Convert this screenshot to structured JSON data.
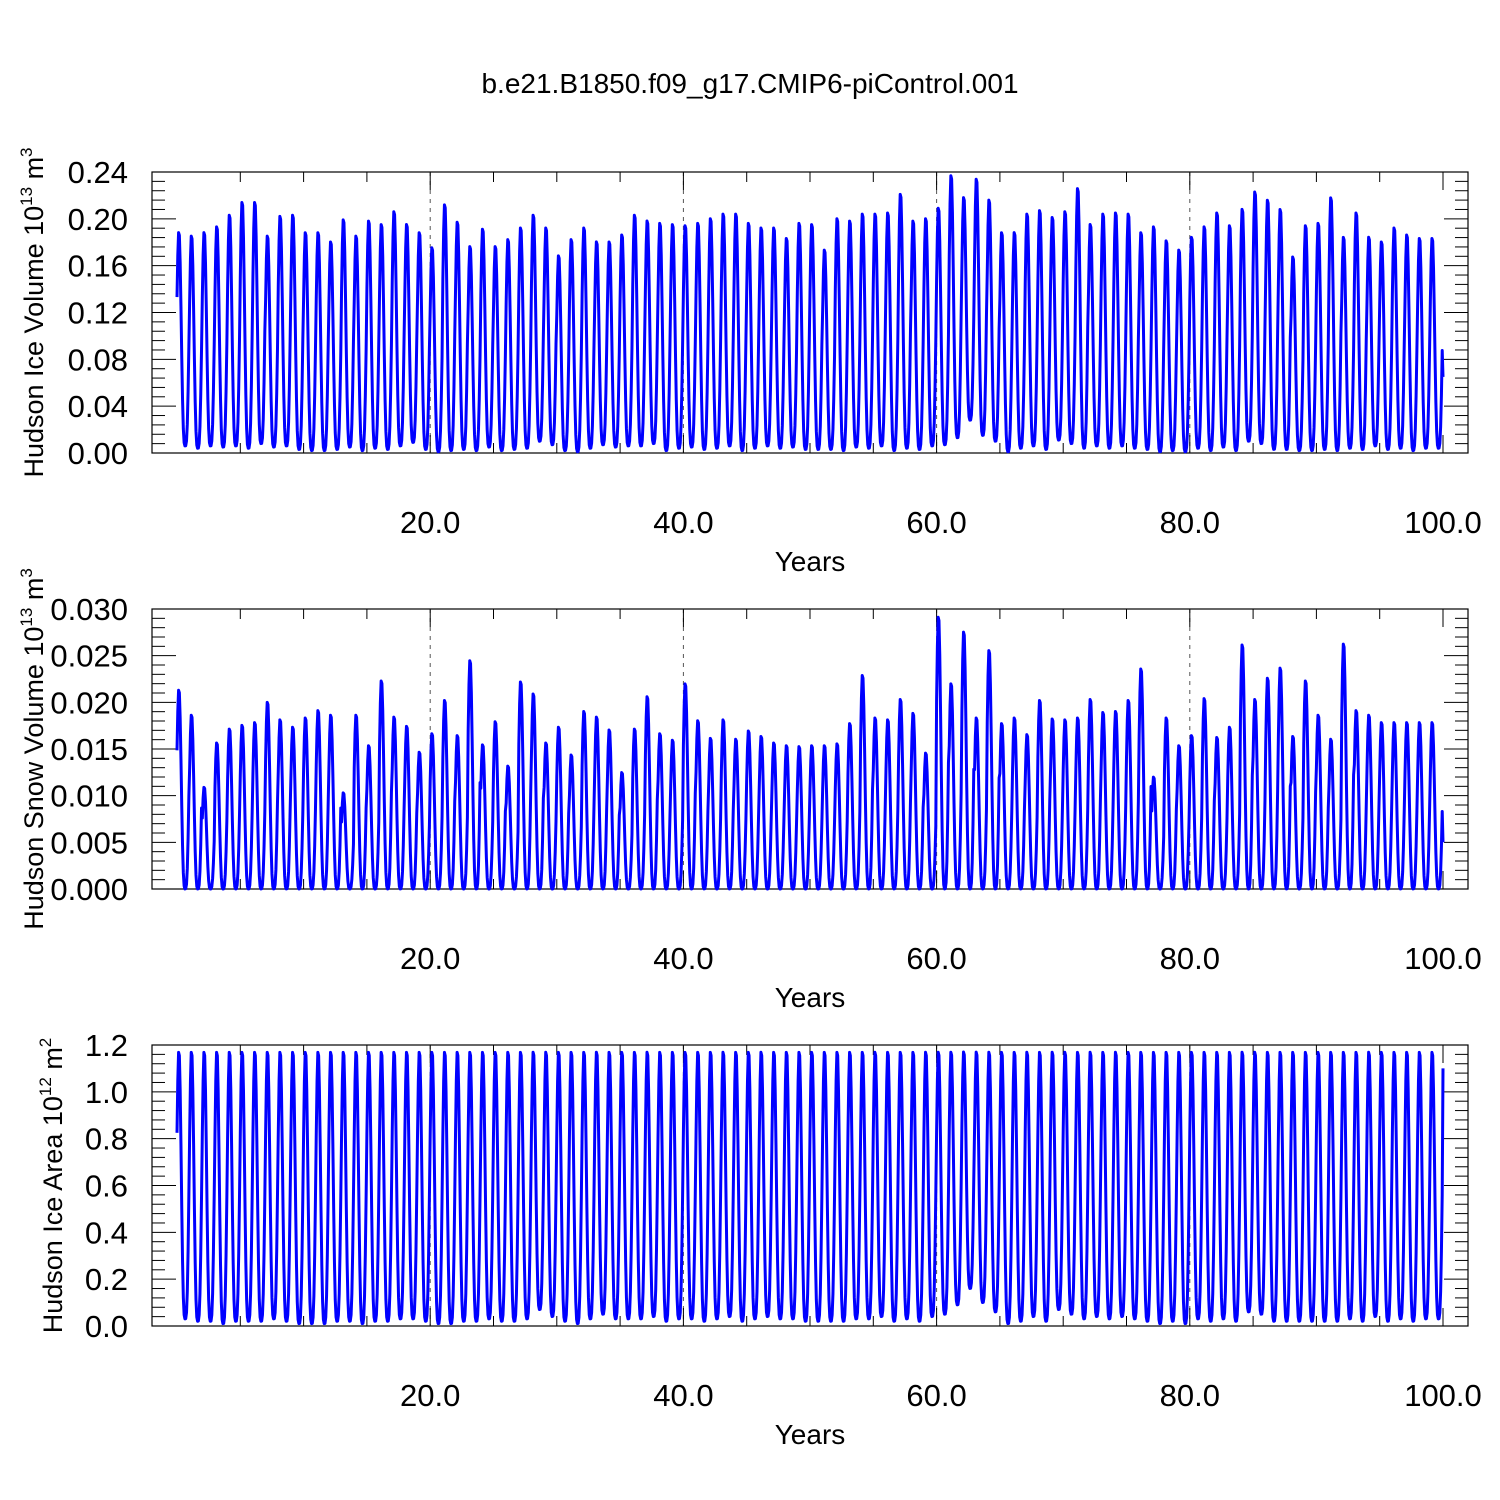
{
  "title": "b.e21.B1850.f09_g17.CMIP6-piControl.001",
  "colors": {
    "series": "#0000ff",
    "axis": "#000000",
    "grid": "#555555"
  },
  "chart_data": [
    {
      "type": "line",
      "ylabel": {
        "pre": "Hudson Ice Volume 10",
        "sup": "13",
        "mid": " m",
        "sup2": "3"
      },
      "xlabel": "Years",
      "xlim": [
        0,
        100
      ],
      "ylim": [
        0,
        0.24
      ],
      "x_ticks": [
        "20.0",
        "40.0",
        "60.0",
        "80.0",
        "100.0"
      ],
      "y_ticks": [
        "0.00",
        "0.04",
        "0.08",
        "0.12",
        "0.16",
        "0.20",
        "0.24"
      ],
      "grid": "vertical dashed at 20, 40, 60, 80",
      "series": [
        {
          "annual_maxima": [
            0.19,
            0.187,
            0.19,
            0.195,
            0.205,
            0.216,
            0.216,
            0.187,
            0.204,
            0.205,
            0.19,
            0.19,
            0.182,
            0.201,
            0.187,
            0.2,
            0.197,
            0.208,
            0.197,
            0.19,
            0.177,
            0.214,
            0.199,
            0.178,
            0.193,
            0.178,
            0.184,
            0.194,
            0.205,
            0.194,
            0.17,
            0.184,
            0.194,
            0.182,
            0.182,
            0.188,
            0.205,
            0.2,
            0.198,
            0.197,
            0.196,
            0.198,
            0.202,
            0.206,
            0.206,
            0.198,
            0.194,
            0.194,
            0.185,
            0.198,
            0.197,
            0.175,
            0.202,
            0.2,
            0.206,
            0.206,
            0.207,
            0.223,
            0.2,
            0.202,
            0.211,
            0.239,
            0.22,
            0.236,
            0.218,
            0.19,
            0.19,
            0.206,
            0.209,
            0.203,
            0.208,
            0.228,
            0.197,
            0.206,
            0.207,
            0.206,
            0.19,
            0.195,
            0.183,
            0.175,
            0.186,
            0.195,
            0.207,
            0.196,
            0.21,
            0.225,
            0.218,
            0.21,
            0.169,
            0.196,
            0.198,
            0.22,
            0.186,
            0.207,
            0.186,
            0.182,
            0.194,
            0.188,
            0.185
          ],
          "annual_minima": [
            0.006,
            0.004,
            0.006,
            0.005,
            0.006,
            0.004,
            0.008,
            0.005,
            0.006,
            0.003,
            0.002,
            0.002,
            0.003,
            0.005,
            0.002,
            0.004,
            0.003,
            0.006,
            0.009,
            0.003,
            0.001,
            0.002,
            0.003,
            0.002,
            0.005,
            0.002,
            0.003,
            0.004,
            0.01,
            0.007,
            0.002,
            0.001,
            0.004,
            0.007,
            0.005,
            0.006,
            0.006,
            0.008,
            0.002,
            0.004,
            0.005,
            0.003,
            0.004,
            0.006,
            0.002,
            0.004,
            0.006,
            0.004,
            0.005,
            0.003,
            0.003,
            0.003,
            0.002,
            0.005,
            0.004,
            0.006,
            0.002,
            0.004,
            0.003,
            0.006,
            0.007,
            0.013,
            0.028,
            0.015,
            0.01,
            0.001,
            0.004,
            0.006,
            0.003,
            0.011,
            0.008,
            0.004,
            0.006,
            0.004,
            0.006,
            0.004,
            0.003,
            0.001,
            0.002,
            0.001,
            0.004,
            0.002,
            0.005,
            0.002,
            0.01,
            0.008,
            0.003,
            0.003,
            0.002,
            0.002,
            0.003,
            0.002,
            0.004,
            0.003,
            0.006,
            0.003,
            0.004,
            0.002,
            0.004
          ],
          "end_value": 0.065
        }
      ]
    },
    {
      "type": "line",
      "ylabel": {
        "pre": "Hudson Snow Volume 10",
        "sup": "13",
        "mid": " m",
        "sup2": "3"
      },
      "xlabel": "Years",
      "xlim": [
        0,
        100
      ],
      "ylim": [
        0,
        0.03
      ],
      "x_ticks": [
        "20.0",
        "40.0",
        "60.0",
        "80.0",
        "100.0"
      ],
      "y_ticks": [
        "0.000",
        "0.005",
        "0.010",
        "0.015",
        "0.020",
        "0.025",
        "0.030"
      ],
      "grid": "vertical dashed at 20, 40, 60, 80",
      "series": [
        {
          "annual_maxima": [
            0.0215,
            0.0188,
            0.011,
            0.0158,
            0.0173,
            0.0177,
            0.018,
            0.0202,
            0.0183,
            0.0175,
            0.0185,
            0.0193,
            0.0188,
            0.0104,
            0.0188,
            0.0155,
            0.0225,
            0.0186,
            0.0176,
            0.0148,
            0.0168,
            0.0204,
            0.0166,
            0.0247,
            0.0156,
            0.0181,
            0.0133,
            0.0224,
            0.0211,
            0.0158,
            0.0175,
            0.0145,
            0.0192,
            0.0186,
            0.0172,
            0.0126,
            0.0173,
            0.0208,
            0.0168,
            0.0161,
            0.0222,
            0.0182,
            0.0163,
            0.0183,
            0.0162,
            0.0171,
            0.0165,
            0.0158,
            0.0155,
            0.0154,
            0.0155,
            0.0155,
            0.0157,
            0.0179,
            0.0231,
            0.0185,
            0.0183,
            0.0205,
            0.019,
            0.0147,
            0.0294,
            0.0222,
            0.0278,
            0.0185,
            0.0258,
            0.0179,
            0.0185,
            0.0167,
            0.0204,
            0.0184,
            0.0183,
            0.0185,
            0.0205,
            0.0191,
            0.0192,
            0.0204,
            0.0238,
            0.0121,
            0.0185,
            0.0155,
            0.0166,
            0.0206,
            0.0164,
            0.0175,
            0.0264,
            0.0205,
            0.0228,
            0.0239,
            0.0165,
            0.0225,
            0.0188,
            0.0162,
            0.0265,
            0.0193,
            0.0188,
            0.018
          ],
          "annual_minima": [
            0.0
          ],
          "end_value": 0.005
        }
      ]
    },
    {
      "type": "line",
      "ylabel": {
        "pre": "Hudson Ice Area 10",
        "sup": "12",
        "mid": " m",
        "sup2": "2"
      },
      "xlabel": "Years",
      "xlim": [
        0,
        100
      ],
      "ylim": [
        0,
        1.2
      ],
      "x_ticks": [
        "20.0",
        "40.0",
        "60.0",
        "80.0",
        "100.0"
      ],
      "y_ticks": [
        "0.0",
        "0.2",
        "0.4",
        "0.6",
        "0.8",
        "1.0",
        "1.2"
      ],
      "grid": "vertical dashed at 20, 40, 60, 80",
      "series": [
        {
          "annual_maxima": [
            1.18
          ],
          "annual_minima": [
            0.03,
            0.02,
            0.02,
            0.01,
            0.02,
            0.02,
            0.02,
            0.03,
            0.02,
            0.01,
            0.01,
            0.01,
            0.02,
            0.02,
            0.01,
            0.02,
            0.02,
            0.03,
            0.03,
            0.02,
            0.01,
            0.01,
            0.02,
            0.02,
            0.03,
            0.02,
            0.02,
            0.03,
            0.07,
            0.04,
            0.02,
            0.01,
            0.03,
            0.05,
            0.03,
            0.03,
            0.03,
            0.04,
            0.02,
            0.03,
            0.03,
            0.02,
            0.03,
            0.04,
            0.02,
            0.03,
            0.04,
            0.03,
            0.03,
            0.02,
            0.02,
            0.02,
            0.02,
            0.03,
            0.03,
            0.04,
            0.02,
            0.03,
            0.02,
            0.04,
            0.05,
            0.09,
            0.16,
            0.1,
            0.06,
            0.01,
            0.02,
            0.04,
            0.02,
            0.07,
            0.05,
            0.03,
            0.04,
            0.03,
            0.04,
            0.03,
            0.02,
            0.01,
            0.02,
            0.01,
            0.03,
            0.02,
            0.03,
            0.02,
            0.06,
            0.05,
            0.02,
            0.02,
            0.02,
            0.02,
            0.02,
            0.02,
            0.03,
            0.02,
            0.04,
            0.02,
            0.03,
            0.02,
            0.03
          ],
          "end_value": 1.1
        }
      ]
    }
  ]
}
